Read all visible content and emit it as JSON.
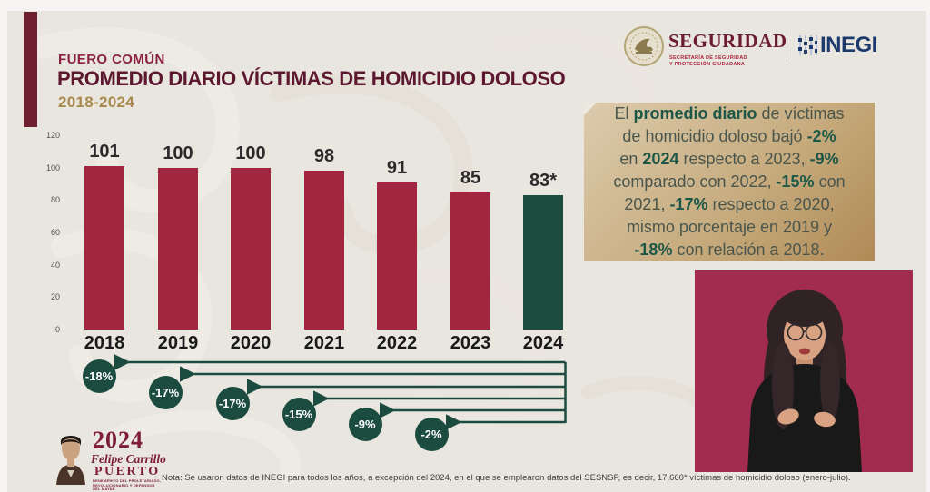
{
  "header": {
    "kicker": "FUERO COMÚN",
    "title": "PROMEDIO DIARIO VÍCTIMAS DE HOMICIDIO DOLOSO",
    "subtitle": "2018-2024"
  },
  "logos": {
    "seguridad": {
      "name": "SEGURIDAD",
      "subline1": "SECRETARÍA DE SEGURIDAD",
      "subline2": "Y PROTECCIÓN CIUDADANA"
    },
    "inegi": {
      "name": "INEGI"
    }
  },
  "chart_data": {
    "type": "bar",
    "title": "Promedio diario víctimas de homicidio doloso, fuero común, 2018-2024",
    "categories": [
      "2018",
      "2019",
      "2020",
      "2021",
      "2022",
      "2023",
      "2024"
    ],
    "values": [
      101,
      100,
      100,
      98,
      91,
      85,
      83
    ],
    "value_labels": [
      "101",
      "100",
      "100",
      "98",
      "91",
      "85",
      "83*"
    ],
    "bar_colors": [
      "#a22640",
      "#a22640",
      "#a22640",
      "#a22640",
      "#a22640",
      "#a22640",
      "#1b4c3f"
    ],
    "yticks": [
      120,
      100,
      80,
      60,
      40,
      20,
      0
    ],
    "ylim": [
      0,
      120
    ],
    "grid": false,
    "legend": false,
    "deltas": [
      {
        "vs": "2018",
        "label": "-18%"
      },
      {
        "vs": "2019",
        "label": "-17%"
      },
      {
        "vs": "2020",
        "label": "-17%"
      },
      {
        "vs": "2021",
        "label": "-15%"
      },
      {
        "vs": "2022",
        "label": "-9%"
      },
      {
        "vs": "2023",
        "label": "-2%"
      }
    ],
    "delta_color": "#1b4c3f"
  },
  "callout": {
    "lines": [
      [
        {
          "t": "El ",
          "b": 0
        },
        {
          "t": "promedio diario",
          "b": 1
        },
        {
          "t": " de víctimas",
          "b": 0
        }
      ],
      [
        {
          "t": "de homicidio doloso bajó ",
          "b": 0
        },
        {
          "t": "-2%",
          "b": 1
        }
      ],
      [
        {
          "t": "en ",
          "b": 0
        },
        {
          "t": "2024",
          "b": 1
        },
        {
          "t": " respecto a 2023, ",
          "b": 0
        },
        {
          "t": "-9%",
          "b": 1
        }
      ],
      [
        {
          "t": "comparado con 2022, ",
          "b": 0
        },
        {
          "t": "-15%",
          "b": 1
        },
        {
          "t": " con",
          "b": 0
        }
      ],
      [
        {
          "t": "2021, ",
          "b": 0
        },
        {
          "t": "-17%",
          "b": 1
        },
        {
          "t": " respecto a 2020,",
          "b": 0
        }
      ],
      [
        {
          "t": "mismo porcentaje en 2019 y",
          "b": 0
        }
      ],
      [
        {
          "t": "-18%",
          "b": 1
        },
        {
          "t": " con relación a 2018.",
          "b": 0
        }
      ]
    ]
  },
  "video": {
    "bg_color": "#a12c50"
  },
  "footer": {
    "note": "Nota: Se usaron datos de INEGI para todos los años, a excepción del 2024, en el que se emplearon datos del SESNSP, es decir, 17,660* víctimas de homicidio doloso (enero-julio).",
    "year_logo": {
      "year": "2024",
      "line1": "Felipe Carrillo",
      "line2": "PUERTO",
      "sub1": "BENEMÉRITO DEL PROLETARIADO,",
      "sub2": "REVOLUCIONARIO Y DEFENSOR",
      "sub3": "DEL MAYAB"
    }
  }
}
